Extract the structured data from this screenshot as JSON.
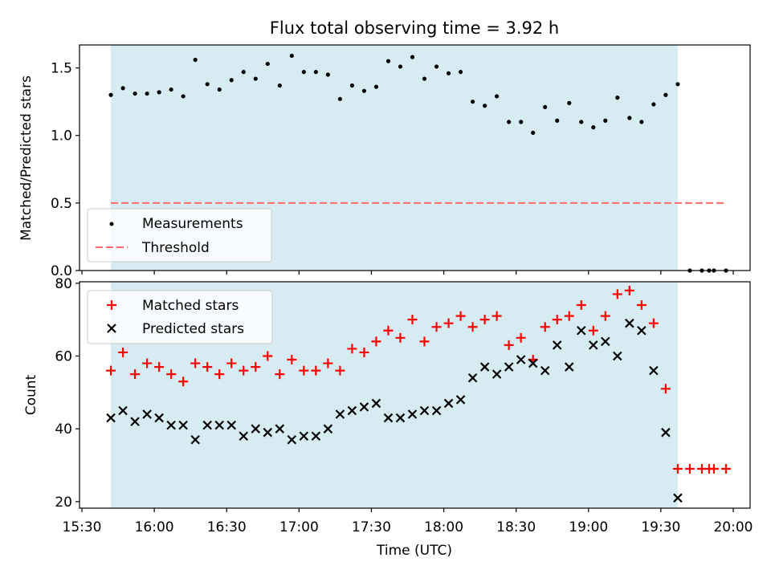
{
  "chart_data": [
    {
      "type": "scatter",
      "title": "Flux total observing time = 3.92 h",
      "xlabel": "",
      "ylabel": "Matched/Predicted stars",
      "ylim": [
        0,
        1.67
      ],
      "yticks": [
        0.0,
        0.5,
        1.0,
        1.5
      ],
      "ytick_labels": [
        "0.0",
        "0.5",
        "1.0",
        "1.5"
      ],
      "shaded_span": [
        "15:42",
        "19:37"
      ],
      "shade_color": "#add8e6",
      "legend_position": "lower left",
      "series": [
        {
          "name": "Measurements",
          "marker": "dot",
          "color": "#000000",
          "x": [
            "15:42",
            "15:47",
            "15:52",
            "15:57",
            "16:02",
            "16:07",
            "16:12",
            "16:17",
            "16:22",
            "16:27",
            "16:32",
            "16:37",
            "16:42",
            "16:47",
            "16:52",
            "16:57",
            "17:02",
            "17:07",
            "17:12",
            "17:17",
            "17:22",
            "17:27",
            "17:32",
            "17:37",
            "17:42",
            "17:47",
            "17:52",
            "17:57",
            "18:02",
            "18:07",
            "18:12",
            "18:17",
            "18:22",
            "18:27",
            "18:32",
            "18:37",
            "18:42",
            "18:47",
            "18:52",
            "18:57",
            "19:02",
            "19:07",
            "19:12",
            "19:17",
            "19:22",
            "19:27",
            "19:32",
            "19:37",
            "19:42",
            "19:47",
            "19:50",
            "19:52",
            "19:57"
          ],
          "y": [
            1.3,
            1.35,
            1.31,
            1.31,
            1.32,
            1.34,
            1.29,
            1.56,
            1.38,
            1.34,
            1.41,
            1.47,
            1.42,
            1.53,
            1.37,
            1.59,
            1.47,
            1.47,
            1.45,
            1.27,
            1.37,
            1.33,
            1.36,
            1.55,
            1.51,
            1.58,
            1.42,
            1.51,
            1.46,
            1.47,
            1.25,
            1.22,
            1.29,
            1.1,
            1.1,
            1.02,
            1.21,
            1.11,
            1.24,
            1.1,
            1.06,
            1.11,
            1.28,
            1.13,
            1.1,
            1.23,
            1.3,
            1.38,
            0.0,
            0.0,
            0.0,
            0.0,
            0.0
          ]
        },
        {
          "name": "Threshold",
          "style": "dashed",
          "color": "#ff6b6b",
          "x": [
            "15:42",
            "19:57"
          ],
          "y": [
            0.5,
            0.5
          ]
        }
      ]
    },
    {
      "type": "scatter",
      "xlabel": "Time (UTC)",
      "ylabel": "Count",
      "ylim": [
        18.2,
        80.4
      ],
      "yticks": [
        20,
        40,
        60,
        80
      ],
      "ytick_labels": [
        "20",
        "40",
        "60",
        "80"
      ],
      "xlim": [
        "15:29",
        "20:07"
      ],
      "xticks": [
        "15:30",
        "16:00",
        "16:30",
        "17:00",
        "17:30",
        "18:00",
        "18:30",
        "19:00",
        "19:30",
        "20:00"
      ],
      "xtick_labels": [
        "15:30",
        "16:00",
        "16:30",
        "17:00",
        "17:30",
        "18:00",
        "18:30",
        "19:00",
        "19:30",
        "20:00"
      ],
      "shaded_span": [
        "15:42",
        "19:37"
      ],
      "shade_color": "#add8e6",
      "legend_position": "upper left",
      "series": [
        {
          "name": "Matched stars",
          "marker": "plus",
          "color": "#ff0000",
          "x": [
            "15:42",
            "15:47",
            "15:52",
            "15:57",
            "16:02",
            "16:07",
            "16:12",
            "16:17",
            "16:22",
            "16:27",
            "16:32",
            "16:37",
            "16:42",
            "16:47",
            "16:52",
            "16:57",
            "17:02",
            "17:07",
            "17:12",
            "17:17",
            "17:22",
            "17:27",
            "17:32",
            "17:37",
            "17:42",
            "17:47",
            "17:52",
            "17:57",
            "18:02",
            "18:07",
            "18:12",
            "18:17",
            "18:22",
            "18:27",
            "18:32",
            "18:37",
            "18:42",
            "18:47",
            "18:52",
            "18:57",
            "19:02",
            "19:07",
            "19:12",
            "19:17",
            "19:22",
            "19:27",
            "19:32",
            "19:37",
            "19:42",
            "19:47",
            "19:50",
            "19:52",
            "19:57"
          ],
          "y": [
            56,
            61,
            55,
            58,
            57,
            55,
            53,
            58,
            57,
            55,
            58,
            56,
            57,
            60,
            55,
            59,
            56,
            56,
            58,
            56,
            62,
            61,
            64,
            67,
            65,
            70,
            64,
            68,
            69,
            71,
            68,
            70,
            71,
            63,
            65,
            59,
            68,
            70,
            71,
            74,
            67,
            71,
            77,
            78,
            74,
            69,
            51,
            29,
            29,
            29,
            29,
            29,
            29
          ]
        },
        {
          "name": "Predicted stars",
          "marker": "x",
          "color": "#000000",
          "x": [
            "15:42",
            "15:47",
            "15:52",
            "15:57",
            "16:02",
            "16:07",
            "16:12",
            "16:17",
            "16:22",
            "16:27",
            "16:32",
            "16:37",
            "16:42",
            "16:47",
            "16:52",
            "16:57",
            "17:02",
            "17:07",
            "17:12",
            "17:17",
            "17:22",
            "17:27",
            "17:32",
            "17:37",
            "17:42",
            "17:47",
            "17:52",
            "17:57",
            "18:02",
            "18:07",
            "18:12",
            "18:17",
            "18:22",
            "18:27",
            "18:32",
            "18:37",
            "18:42",
            "18:47",
            "18:52",
            "18:57",
            "19:02",
            "19:07",
            "19:12",
            "19:17",
            "19:22",
            "19:27",
            "19:32",
            "19:37"
          ],
          "y": [
            43,
            45,
            42,
            44,
            43,
            41,
            41,
            37,
            41,
            41,
            41,
            38,
            40,
            39,
            40,
            37,
            38,
            38,
            40,
            44,
            45,
            46,
            47,
            43,
            43,
            44,
            45,
            45,
            47,
            48,
            54,
            57,
            55,
            57,
            59,
            58,
            56,
            63,
            57,
            67,
            63,
            64,
            60,
            69,
            67,
            56,
            39,
            21
          ]
        }
      ]
    }
  ]
}
